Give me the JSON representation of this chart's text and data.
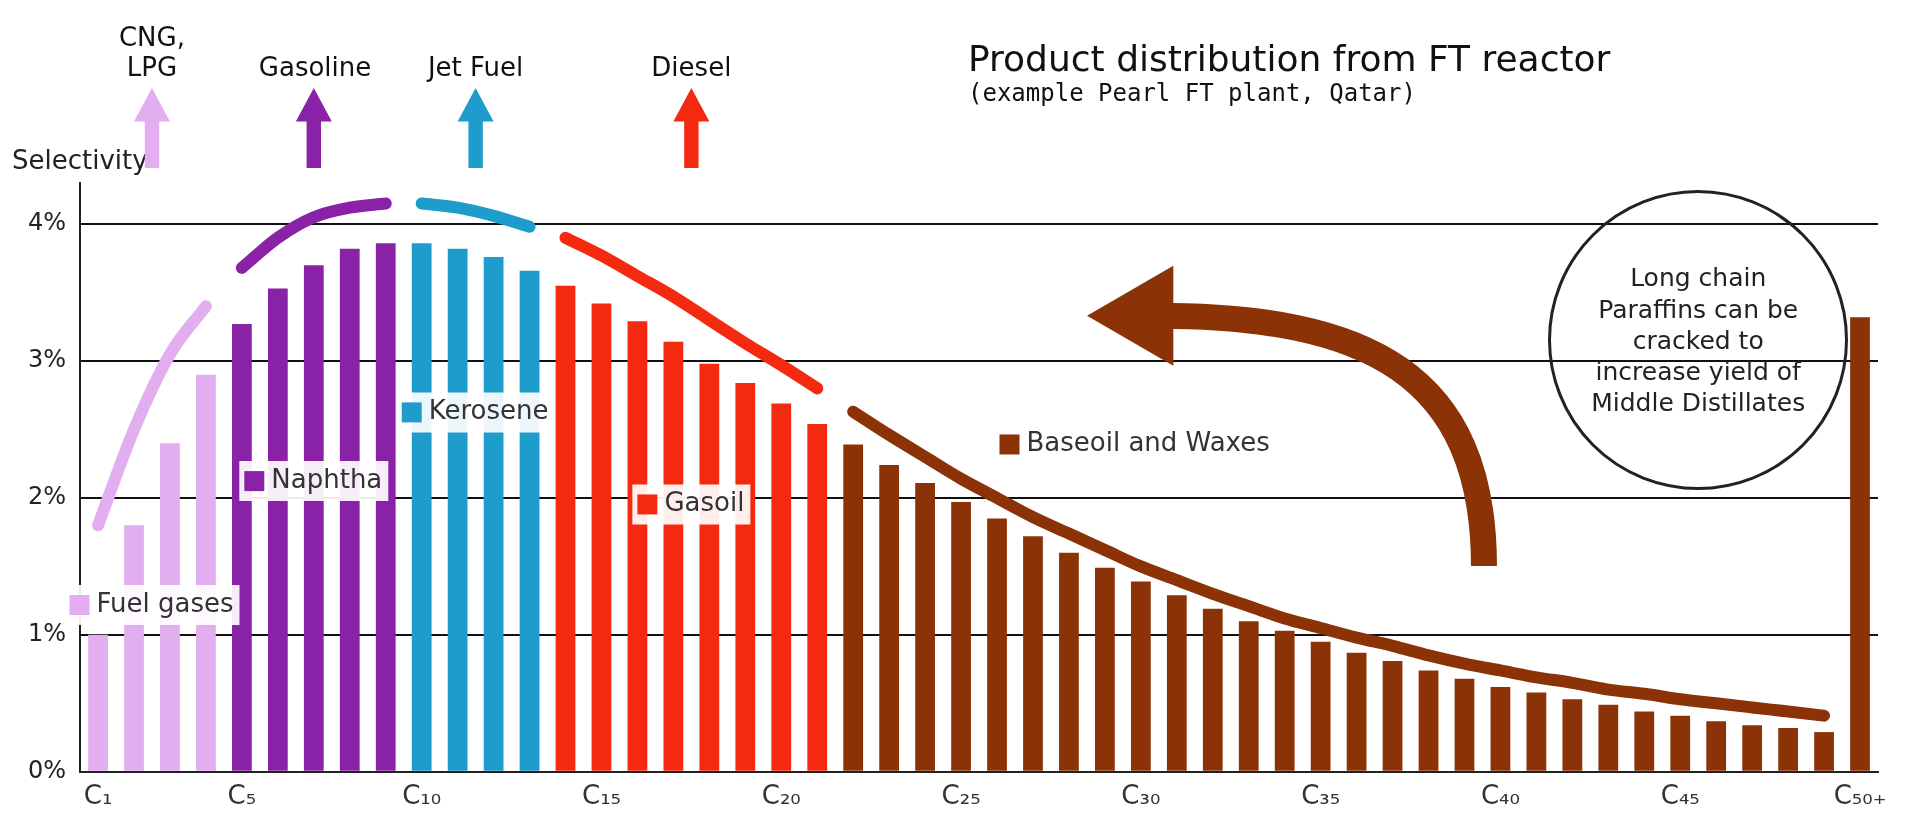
{
  "chart_data": {
    "type": "bar",
    "title": "Product distribution from FT reactor",
    "subtitle": "(example Pearl FT plant, Qatar)",
    "ylabel": "Selectivity",
    "categories": [
      "C₁",
      null,
      null,
      null,
      "C₅",
      null,
      null,
      null,
      null,
      "C₁₀",
      null,
      null,
      null,
      null,
      "C₁₅",
      null,
      null,
      null,
      null,
      "C₂₀",
      null,
      null,
      null,
      null,
      "C₂₅",
      null,
      null,
      null,
      null,
      "C₃₀",
      null,
      null,
      null,
      null,
      "C₃₅",
      null,
      null,
      null,
      null,
      "C₄₀",
      null,
      null,
      null,
      null,
      "C₄₅",
      null,
      null,
      null,
      null,
      "C₅₀₊"
    ],
    "series": [
      {
        "name": "Fuel gases",
        "color": "#e2aef0",
        "values": [
          1.0,
          1.8,
          2.4,
          2.9,
          null,
          null,
          null,
          null,
          null,
          null,
          null,
          null,
          null,
          null,
          null,
          null,
          null,
          null,
          null,
          null,
          null,
          null,
          null,
          null,
          null,
          null,
          null,
          null,
          null,
          null,
          null,
          null,
          null,
          null,
          null,
          null,
          null,
          null,
          null,
          null,
          null,
          null,
          null,
          null,
          null,
          null,
          null,
          null,
          null,
          null
        ]
      },
      {
        "name": "Naphtha",
        "color": "#8a22a8",
        "values": [
          null,
          null,
          null,
          null,
          3.27,
          3.53,
          3.7,
          3.82,
          3.86,
          null,
          null,
          null,
          null,
          null,
          null,
          null,
          null,
          null,
          null,
          null,
          null,
          null,
          null,
          null,
          null,
          null,
          null,
          null,
          null,
          null,
          null,
          null,
          null,
          null,
          null,
          null,
          null,
          null,
          null,
          null,
          null,
          null,
          null,
          null,
          null,
          null,
          null,
          null,
          null,
          null
        ]
      },
      {
        "name": "Kerosene",
        "color": "#1e9ccc",
        "values": [
          null,
          null,
          null,
          null,
          null,
          null,
          null,
          null,
          null,
          3.86,
          3.82,
          3.76,
          3.66,
          null,
          null,
          null,
          null,
          null,
          null,
          null,
          null,
          null,
          null,
          null,
          null,
          null,
          null,
          null,
          null,
          null,
          null,
          null,
          null,
          null,
          null,
          null,
          null,
          null,
          null,
          null,
          null,
          null,
          null,
          null,
          null,
          null,
          null,
          null,
          null,
          null
        ]
      },
      {
        "name": "Gasoil",
        "color": "#f42a10",
        "values": [
          null,
          null,
          null,
          null,
          null,
          null,
          null,
          null,
          null,
          null,
          null,
          null,
          null,
          3.55,
          3.42,
          3.29,
          3.14,
          2.98,
          2.84,
          2.69,
          2.54,
          null,
          null,
          null,
          null,
          null,
          null,
          null,
          null,
          null,
          null,
          null,
          null,
          null,
          null,
          null,
          null,
          null,
          null,
          null,
          null,
          null,
          null,
          null,
          null,
          null,
          null,
          null,
          null,
          null
        ]
      },
      {
        "name": "Baseoil and Waxes",
        "color": "#8b3306",
        "values": [
          null,
          null,
          null,
          null,
          null,
          null,
          null,
          null,
          null,
          null,
          null,
          null,
          null,
          null,
          null,
          null,
          null,
          null,
          null,
          null,
          null,
          2.39,
          2.24,
          2.11,
          1.97,
          1.85,
          1.72,
          1.6,
          1.49,
          1.39,
          1.29,
          1.19,
          1.1,
          1.03,
          0.95,
          0.87,
          0.81,
          0.74,
          0.68,
          0.62,
          0.58,
          0.53,
          0.49,
          0.44,
          0.41,
          0.37,
          0.34,
          0.32,
          0.29,
          3.32
        ]
      },
      {
        "type": "line",
        "color": "#e2aef0",
        "values": [
          1.8,
          2.5,
          3.05,
          3.4,
          null,
          null,
          null,
          null,
          null,
          null,
          null,
          null,
          null,
          null,
          null,
          null,
          null,
          null,
          null,
          null,
          null,
          null,
          null,
          null,
          null,
          null,
          null,
          null,
          null,
          null,
          null,
          null,
          null,
          null,
          null,
          null,
          null,
          null,
          null,
          null,
          null,
          null,
          null,
          null,
          null,
          null,
          null,
          null,
          null,
          null
        ]
      },
      {
        "type": "line",
        "color": "#8a22a8",
        "values": [
          null,
          null,
          null,
          null,
          3.68,
          3.9,
          4.05,
          4.12,
          4.15,
          null,
          null,
          null,
          null,
          null,
          null,
          null,
          null,
          null,
          null,
          null,
          null,
          null,
          null,
          null,
          null,
          null,
          null,
          null,
          null,
          null,
          null,
          null,
          null,
          null,
          null,
          null,
          null,
          null,
          null,
          null,
          null,
          null,
          null,
          null,
          null,
          null,
          null,
          null,
          null,
          null
        ]
      },
      {
        "type": "line",
        "color": "#1e9ccc",
        "values": [
          null,
          null,
          null,
          null,
          null,
          null,
          null,
          null,
          null,
          4.15,
          4.12,
          4.06,
          3.98,
          null,
          null,
          null,
          null,
          null,
          null,
          null,
          null,
          null,
          null,
          null,
          null,
          null,
          null,
          null,
          null,
          null,
          null,
          null,
          null,
          null,
          null,
          null,
          null,
          null,
          null,
          null,
          null,
          null,
          null,
          null,
          null,
          null,
          null,
          null,
          null,
          null
        ]
      },
      {
        "type": "line",
        "color": "#f42a10",
        "values": [
          null,
          null,
          null,
          null,
          null,
          null,
          null,
          null,
          null,
          null,
          null,
          null,
          null,
          3.9,
          3.77,
          3.62,
          3.47,
          3.3,
          3.13,
          2.97,
          2.8,
          null,
          null,
          null,
          null,
          null,
          null,
          null,
          null,
          null,
          null,
          null,
          null,
          null,
          null,
          null,
          null,
          null,
          null,
          null,
          null,
          null,
          null,
          null,
          null,
          null,
          null,
          null,
          null,
          null
        ]
      },
      {
        "type": "line",
        "color": "#8b3306",
        "values": [
          null,
          null,
          null,
          null,
          null,
          null,
          null,
          null,
          null,
          null,
          null,
          null,
          null,
          null,
          null,
          null,
          null,
          null,
          null,
          null,
          null,
          2.63,
          2.46,
          2.3,
          2.14,
          2.0,
          1.86,
          1.74,
          1.62,
          1.5,
          1.4,
          1.3,
          1.21,
          1.12,
          1.05,
          0.98,
          0.92,
          0.85,
          0.79,
          0.74,
          0.69,
          0.65,
          0.6,
          0.57,
          0.53,
          0.5,
          0.47,
          0.44,
          0.41,
          null
        ]
      }
    ],
    "legend": "center",
    "ylim": [
      0,
      4.3
    ],
    "yticks": [
      {
        "value": 0,
        "label": "0%"
      },
      {
        "value": 1,
        "label": "1%"
      },
      {
        "value": 2,
        "label": "2%"
      },
      {
        "value": 3,
        "label": "3%"
      },
      {
        "value": 4,
        "label": "4%"
      }
    ],
    "grid": "y",
    "marker": "none",
    "annotations": [
      "CNG, LPG",
      "Gasoline",
      "Jet Fuel",
      "Diesel",
      "Long chain Paraffins can be cracked to increase yield of Middle Distillates"
    ]
  }
}
